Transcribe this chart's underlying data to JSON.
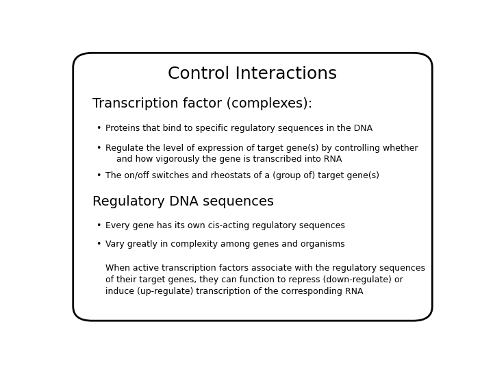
{
  "title": "Control Interactions",
  "title_fontsize": 18,
  "bg_color": "#ffffff",
  "border_color": "#000000",
  "text_color": "#000000",
  "section1_header": "Transcription factor (complexes):",
  "section1_header_fontsize": 14,
  "section1_bullet1": "Proteins that bind to specific regulatory sequences in the DNA",
  "section1_bullet2a": "Regulate the level of expression of target gene(s) by controlling whether",
  "section1_bullet2b": "    and how vigorously the gene is transcribed into RNA",
  "section1_bullet3": "The on/off switches and rheostats of a (group of) target gene(s)",
  "section2_header": "Regulatory DNA sequences",
  "section2_header_fontsize": 14,
  "section2_bullet1": "Every gene has its own cis-acting regulatory sequences",
  "section2_bullet2": "Vary greatly in complexity among genes and organisms",
  "paragraph": "When active transcription factors associate with the regulatory sequences\nof their target genes, they can function to repress (down-regulate) or\ninduce (up-regulate) transcription of the corresponding RNA",
  "bullet_fontsize": 9,
  "paragraph_fontsize": 9,
  "bullet_char": "•"
}
